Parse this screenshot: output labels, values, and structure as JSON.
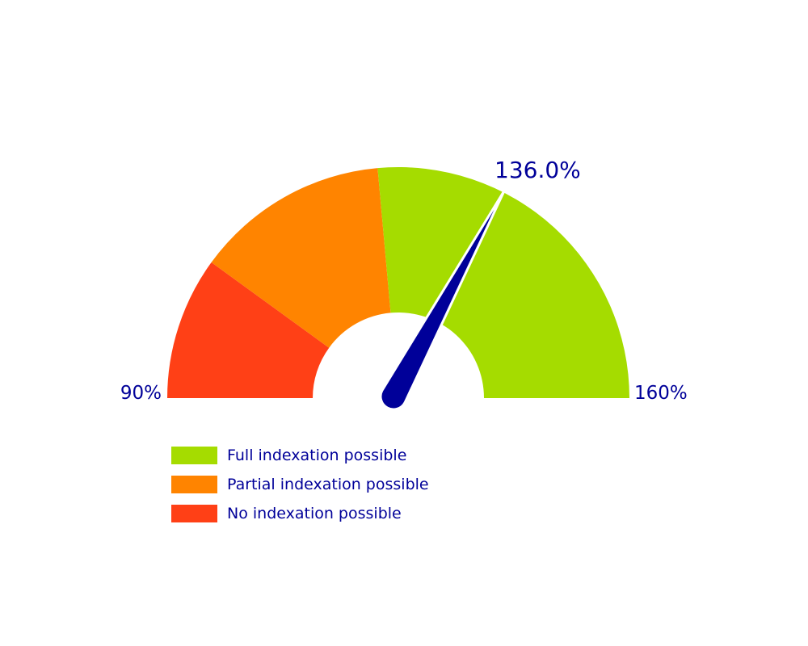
{
  "chart_data": {
    "type": "gauge",
    "min": 90,
    "max": 160,
    "min_label": "90%",
    "max_label": "160%",
    "value": 136.0,
    "value_label": "136.0%",
    "bands": [
      {
        "name": "No indexation possible",
        "from": 90,
        "to": 104,
        "color": "#ff4016"
      },
      {
        "name": "Partial indexation possible",
        "from": 104,
        "to": 123,
        "color": "#ff8400"
      },
      {
        "name": "Full indexation possible",
        "from": 123,
        "to": 160,
        "color": "#a5dc00"
      }
    ],
    "needle_color": "#000099",
    "legend": [
      {
        "label": "Full indexation possible",
        "color": "#a5dc00"
      },
      {
        "label": "Partial indexation possible",
        "color": "#ff8400"
      },
      {
        "label": "No indexation possible",
        "color": "#ff4016"
      }
    ],
    "legend_position": "bottom-left"
  }
}
